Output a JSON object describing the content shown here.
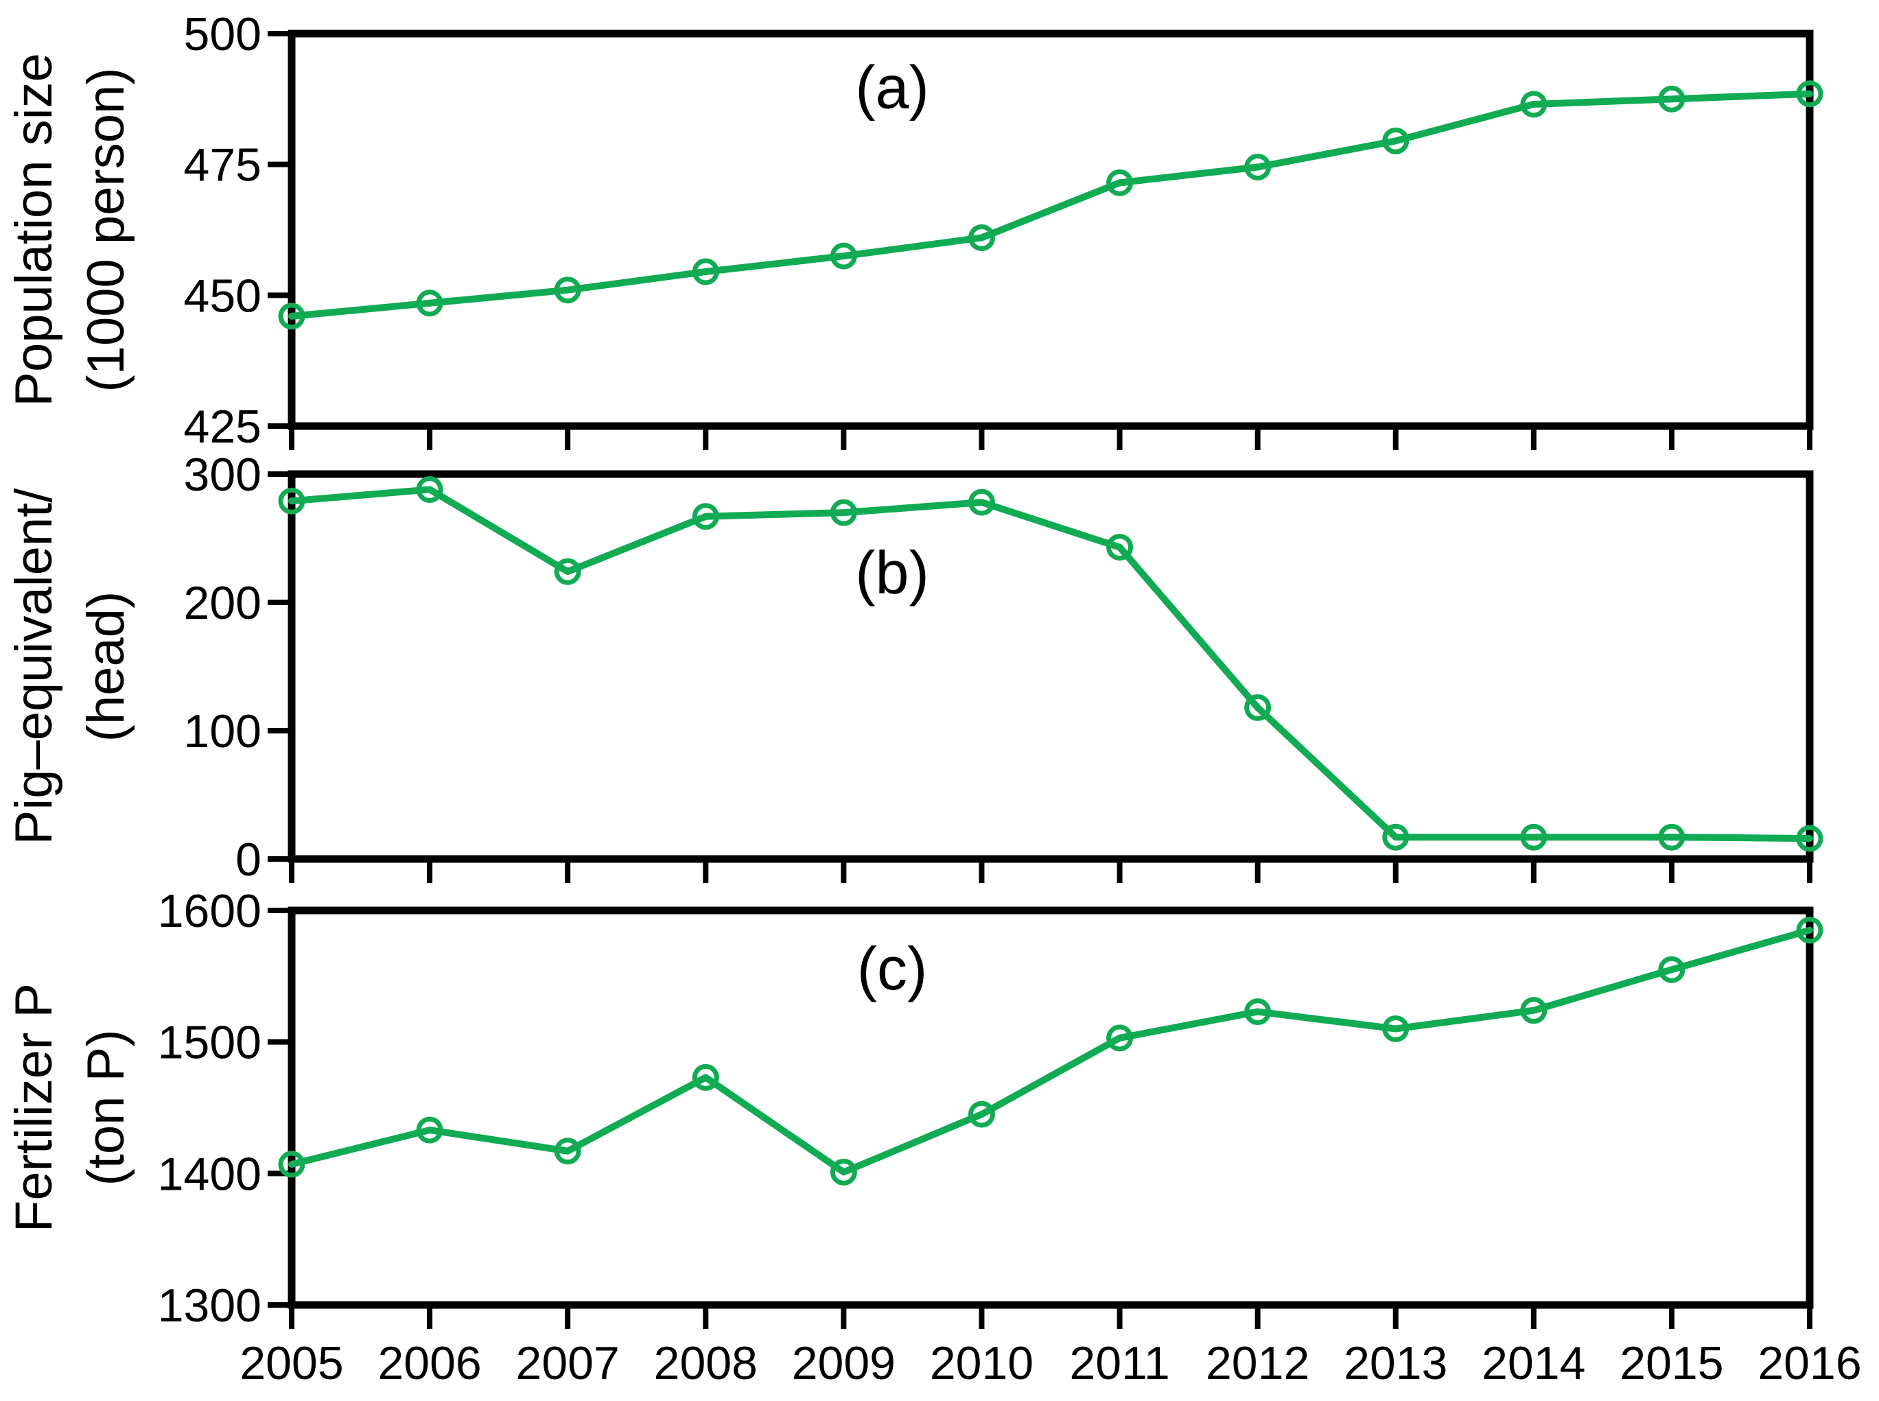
{
  "figure": {
    "description": "Three stacked line-chart panels sharing x-axis of years",
    "x_values": [
      2005,
      2006,
      2007,
      2008,
      2009,
      2010,
      2011,
      2012,
      2013,
      2014,
      2015,
      2016
    ],
    "x_tick_labels": [
      "2005",
      "2006",
      "2007",
      "2008",
      "2009",
      "2010",
      "2011",
      "2012",
      "2013",
      "2014",
      "2015",
      "2016"
    ]
  },
  "style": {
    "line_color": "#10ab52",
    "axis_color": "#000000",
    "background_color": "#ffffff",
    "marker": "open-circle",
    "marker_fill": "none"
  },
  "chart_data": [
    {
      "type": "line",
      "panel_label": "(a)",
      "ylabel_lines": [
        "Population size",
        "(1000 person)"
      ],
      "x": [
        2005,
        2006,
        2007,
        2008,
        2009,
        2010,
        2011,
        2012,
        2013,
        2014,
        2015,
        2016
      ],
      "values": [
        446,
        448.5,
        451,
        454.5,
        457.5,
        461,
        471.5,
        474.5,
        479.5,
        486.5,
        487.5,
        488.5
      ],
      "ylim": [
        425,
        500
      ],
      "yticks": [
        425,
        450,
        475,
        500
      ],
      "grid": false,
      "legend": "none"
    },
    {
      "type": "line",
      "panel_label": "(b)",
      "ylabel_lines": [
        "Pig–equivalent/",
        "(head)"
      ],
      "x": [
        2005,
        2006,
        2007,
        2008,
        2009,
        2010,
        2011,
        2012,
        2013,
        2014,
        2015,
        2016
      ],
      "values": [
        279,
        288,
        224,
        267,
        270,
        278,
        243,
        118,
        17,
        17,
        17,
        16
      ],
      "ylim": [
        0,
        300
      ],
      "yticks": [
        0,
        100,
        200,
        300
      ],
      "grid": false,
      "legend": "none"
    },
    {
      "type": "line",
      "panel_label": "(c)",
      "ylabel_lines": [
        "Fertilizer P",
        "(ton P)"
      ],
      "x": [
        2005,
        2006,
        2007,
        2008,
        2009,
        2010,
        2011,
        2012,
        2013,
        2014,
        2015,
        2016
      ],
      "values": [
        1407,
        1433,
        1417,
        1473,
        1401,
        1445,
        1503,
        1523,
        1510,
        1524,
        1555,
        1585
      ],
      "ylim": [
        1300,
        1600
      ],
      "yticks": [
        1300,
        1400,
        1500,
        1600
      ],
      "grid": false,
      "legend": "none"
    }
  ]
}
